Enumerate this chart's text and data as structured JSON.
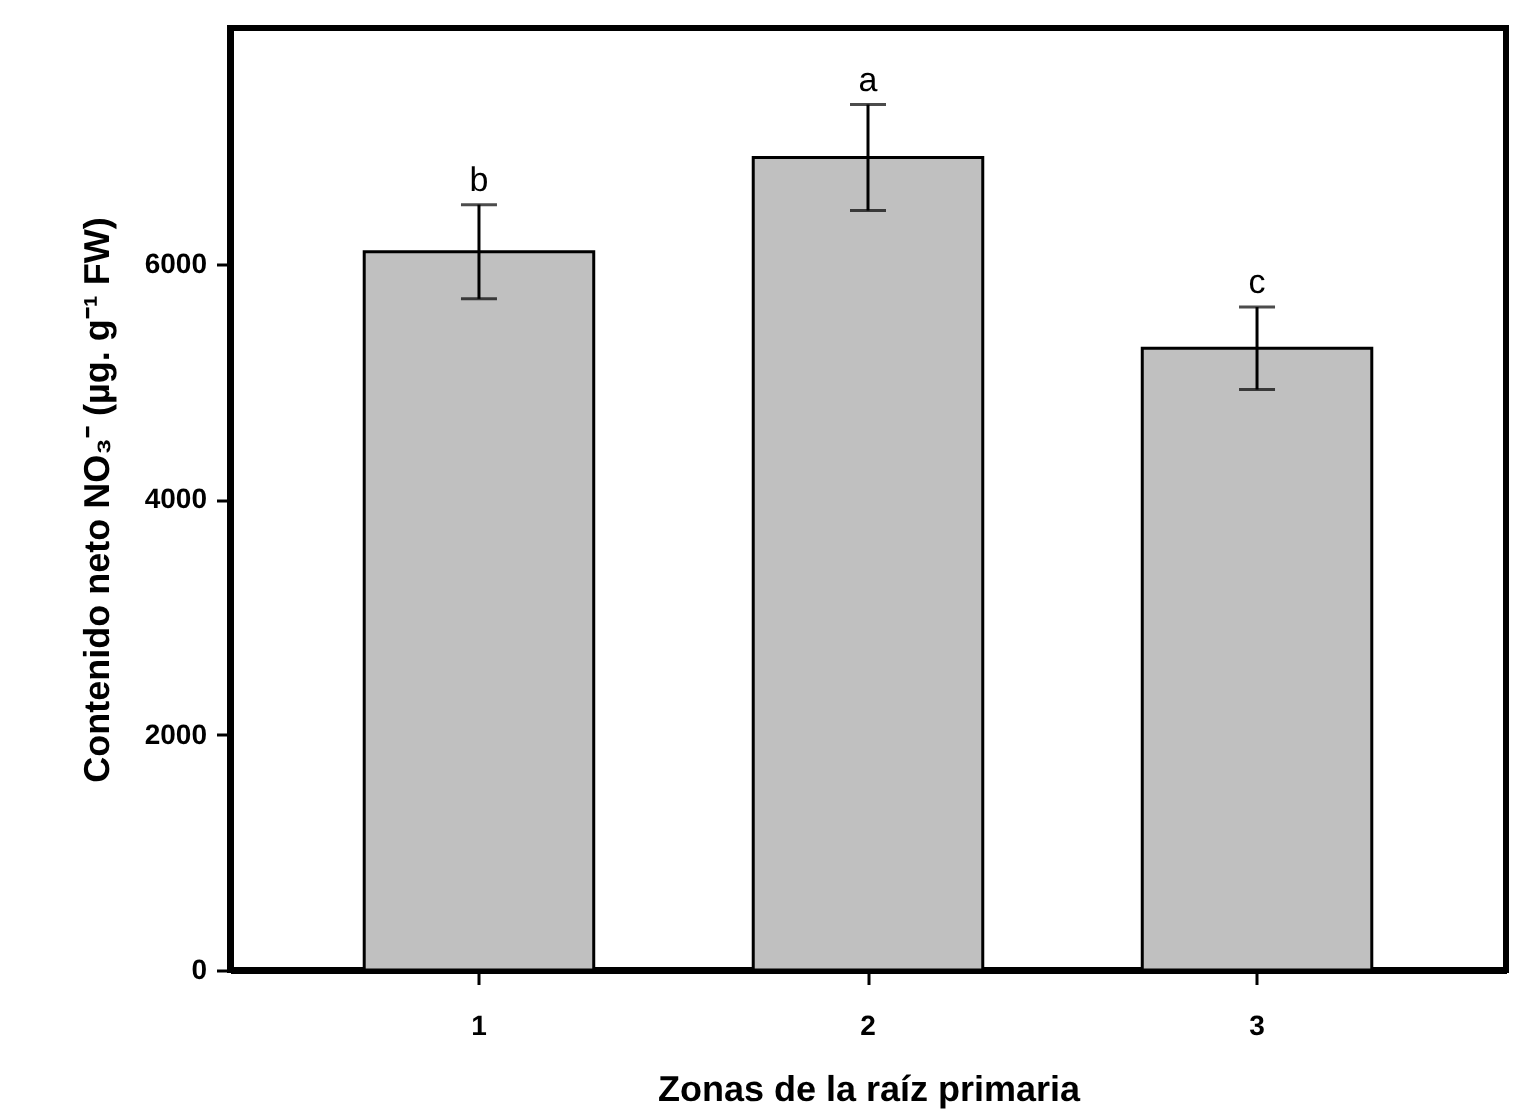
{
  "chart_data": {
    "type": "bar",
    "xlabel": "Zonas de la raíz primaria",
    "ylabel": "Contenido neto NO₃⁻ (µg.  g⁻¹ FW)",
    "categories": [
      "1",
      "2",
      "3"
    ],
    "values": [
      6100,
      6900,
      5280
    ],
    "errors": [
      400,
      450,
      350
    ],
    "colors": [
      "#c0c0c0",
      "#c0c0c0",
      "#c0c0c0"
    ],
    "ylim": [
      0,
      8000
    ],
    "yticks": [
      0,
      2000,
      4000,
      6000
    ],
    "annotations": [
      {
        "text": "b",
        "x": "1",
        "y": 6500
      },
      {
        "text": "a",
        "x": "2",
        "y": 7350
      },
      {
        "text": "c",
        "x": "3",
        "y": 5630
      }
    ]
  }
}
